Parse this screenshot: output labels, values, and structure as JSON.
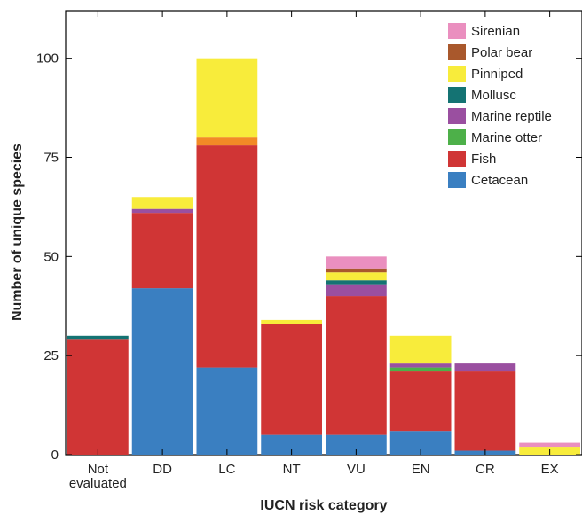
{
  "chart_data": {
    "type": "bar",
    "stacked": true,
    "title": "",
    "xlabel": "IUCN risk category",
    "ylabel": "Number of unique species",
    "ylim": [
      0,
      112
    ],
    "yticks": [
      0,
      25,
      50,
      75,
      100
    ],
    "grid": false,
    "legend_position": "top-right",
    "categories": [
      "Not evaluated",
      "DD",
      "LC",
      "NT",
      "VU",
      "EN",
      "CR",
      "EX"
    ],
    "category_lines": [
      [
        "Not",
        "evaluated"
      ],
      [
        "DD"
      ],
      [
        "LC"
      ],
      [
        "NT"
      ],
      [
        "VU"
      ],
      [
        "EN"
      ],
      [
        "CR"
      ],
      [
        "EX"
      ]
    ],
    "series": [
      {
        "name": "Cetacean",
        "color": "#3a7fc1",
        "values": [
          0,
          42,
          22,
          5,
          5,
          6,
          1,
          0
        ]
      },
      {
        "name": "Fish",
        "color": "#d03535",
        "values": [
          29,
          19,
          56,
          28,
          35,
          15,
          20,
          0
        ]
      },
      {
        "name": "Marine otter",
        "color": "#4db049",
        "values": [
          0,
          0,
          0,
          0,
          0,
          1,
          0,
          0
        ]
      },
      {
        "name": "Marine reptile",
        "color": "#9a4fa0",
        "values": [
          0,
          1,
          0,
          0,
          3,
          1,
          2,
          0
        ]
      },
      {
        "name": "Mollusc",
        "color": "#147373",
        "values": [
          1,
          0,
          0,
          0,
          1,
          0,
          0,
          0
        ]
      },
      {
        "name": "Pinniped",
        "color": "#f8ec3b",
        "values": [
          0,
          3,
          20,
          1,
          2,
          7,
          0,
          2
        ]
      },
      {
        "name": "Polar bear",
        "color": "#a9582c",
        "values": [
          0,
          0,
          0,
          0,
          1,
          0,
          0,
          0
        ]
      },
      {
        "name": "Sirenian",
        "color": "#ea8fbf",
        "values": [
          0,
          0,
          0,
          0,
          3,
          0,
          0,
          1
        ]
      }
    ],
    "highlight_segment": {
      "category": "LC",
      "color": "#f28a26",
      "value": 2,
      "note": "orange band between Fish and Pinniped"
    },
    "legend_order": [
      "Sirenian",
      "Polar bear",
      "Pinniped",
      "Mollusc",
      "Marine reptile",
      "Marine otter",
      "Fish",
      "Cetacean"
    ]
  }
}
